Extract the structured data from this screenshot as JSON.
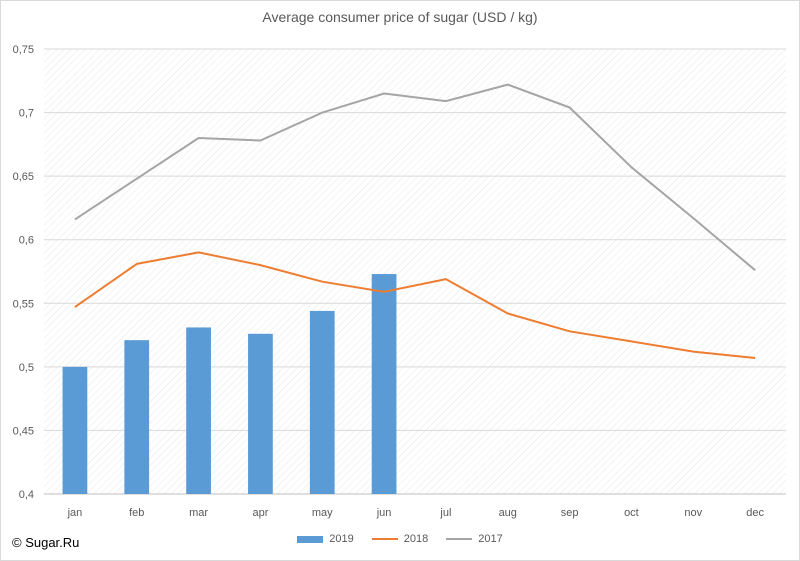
{
  "chart_data": {
    "type": "bar",
    "title": "Average consumer price of sugar (USD / kg)",
    "categories": [
      "jan",
      "feb",
      "mar",
      "apr",
      "may",
      "jun",
      "jul",
      "aug",
      "sep",
      "oct",
      "nov",
      "dec"
    ],
    "ylim": [
      0.4,
      0.75
    ],
    "yticks": [
      "0,4",
      "0,45",
      "0,5",
      "0,55",
      "0,6",
      "0,65",
      "0,7",
      "0,75"
    ],
    "grid": true,
    "legend_position": "bottom",
    "series": [
      {
        "name": "2019",
        "kind": "bar",
        "color": "#5b9bd5",
        "values": [
          0.5,
          0.521,
          0.531,
          0.526,
          0.544,
          0.573,
          null,
          null,
          null,
          null,
          null,
          null
        ]
      },
      {
        "name": "2018",
        "kind": "line",
        "color": "#ed7d31",
        "values": [
          0.547,
          0.581,
          0.59,
          0.58,
          0.567,
          0.559,
          0.569,
          0.542,
          0.528,
          0.52,
          0.512,
          0.507
        ]
      },
      {
        "name": "2017",
        "kind": "line",
        "color": "#a5a5a5",
        "values": [
          0.616,
          0.648,
          0.68,
          0.678,
          0.7,
          0.715,
          0.709,
          0.722,
          0.704,
          0.657,
          0.617,
          0.576
        ]
      }
    ]
  },
  "footer": {
    "copyright": "© Sugar.Ru"
  }
}
